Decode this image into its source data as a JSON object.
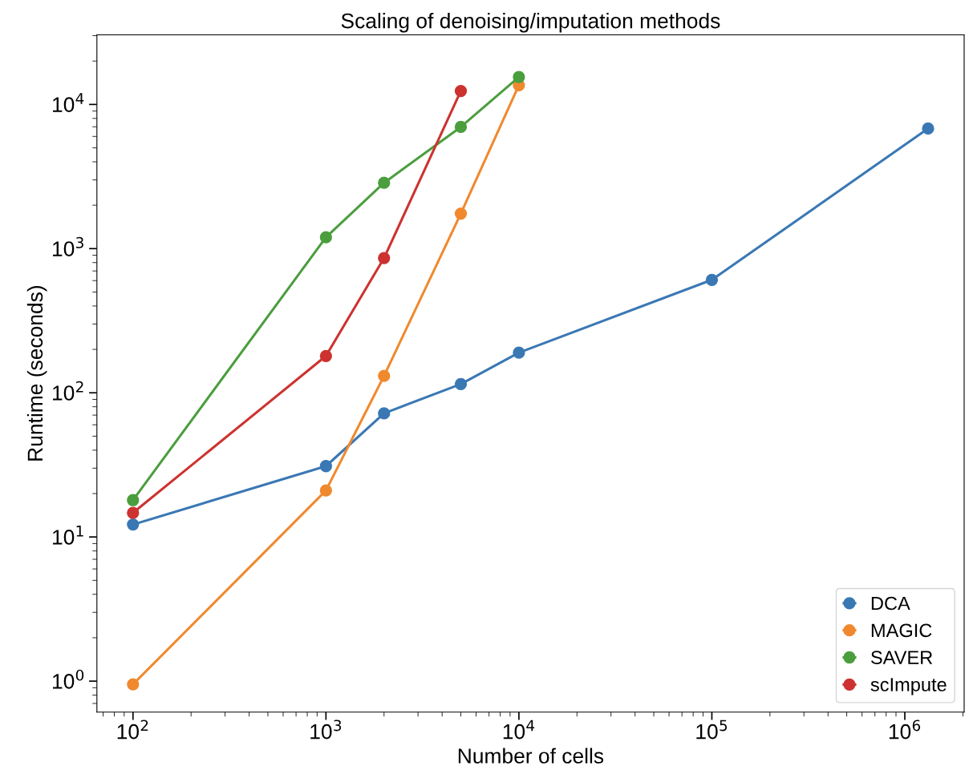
{
  "chart_data": {
    "type": "line",
    "title": "Scaling of denoising/imputation methods",
    "xlabel": "Number of cells",
    "ylabel": "Runtime (seconds)",
    "log": "xy",
    "xlim": [
      65,
      2030000
    ],
    "ylim": [
      0.61,
      30400
    ],
    "xticks": [
      {
        "value": 100,
        "label": "10$^{2}$"
      },
      {
        "value": 1000,
        "label": "10$^{3}$"
      },
      {
        "value": 10000,
        "label": "10$^{4}$"
      },
      {
        "value": 100000,
        "label": "10$^{5}$"
      },
      {
        "value": 1000000,
        "label": "10$^{6}$"
      }
    ],
    "yticks": [
      {
        "value": 1,
        "label": "10$^{0}$"
      },
      {
        "value": 10,
        "label": "10$^{1}$"
      },
      {
        "value": 100,
        "label": "10$^{2}$"
      },
      {
        "value": 1000,
        "label": "10$^{3}$"
      },
      {
        "value": 10000,
        "label": "10$^{4}$"
      }
    ],
    "marker": "circle",
    "line_style": "solid",
    "grid": false,
    "legend": "bottom right",
    "series": [
      {
        "name": "DCA",
        "color": "#3a78b4",
        "x": [
          100,
          1000,
          2000,
          5000,
          10000,
          100000,
          1320000
        ],
        "values": [
          12.2,
          31,
          72,
          115,
          190,
          607,
          6810
        ]
      },
      {
        "name": "MAGIC",
        "color": "#f0892e",
        "x": [
          100,
          1000,
          2000,
          5000,
          10000
        ],
        "values": [
          0.95,
          21,
          131,
          1750,
          13600
        ]
      },
      {
        "name": "SAVER",
        "color": "#4b9e3e",
        "x": [
          100,
          1000,
          2000,
          5000,
          10000
        ],
        "values": [
          18,
          1200,
          2860,
          6980,
          15500
        ]
      },
      {
        "name": "scImpute",
        "color": "#cc3330",
        "x": [
          100,
          1000,
          2000,
          5000
        ],
        "values": [
          14.7,
          180,
          860,
          12400
        ]
      }
    ]
  }
}
